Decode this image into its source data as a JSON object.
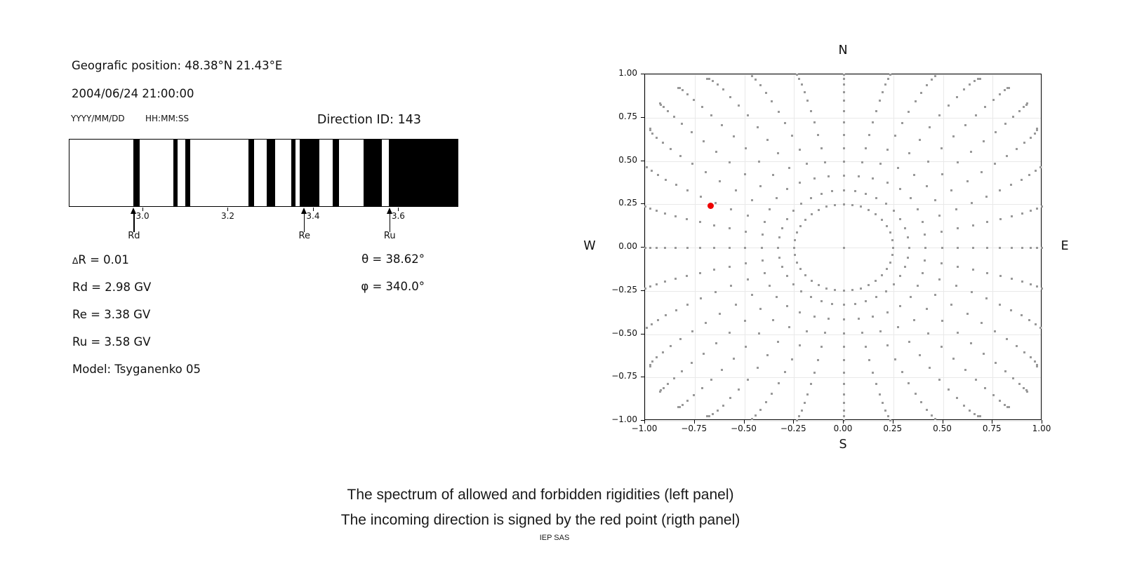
{
  "left_panel": {
    "position_line": "Geografic position: 48.38°N 21.43°E",
    "datetime_line": "2004/06/24 21:00:00",
    "date_format_label": "YYYY/MM/DD",
    "time_format_label": "HH:MM:SS",
    "direction_id": "Direction ID: 143",
    "values": {
      "delta_symbol": "∆",
      "delta_r": "R = 0.01",
      "rd": "Rd = 2.98 GV",
      "re": "Re = 3.38 GV",
      "ru": "Ru = 3.58 GV",
      "model": "Model: Tsyganenko 05",
      "theta": "θ = 38.62°",
      "phi": "φ = 340.0°"
    }
  },
  "chart_data": [
    {
      "type": "bar",
      "subtype": "barcode-rigidity-spectrum",
      "title": "Direction ID: 143",
      "xlim": [
        2.827,
        3.741
      ],
      "xticks": [
        3.0,
        3.2,
        3.4,
        3.6
      ],
      "xtick_labels": [
        "3.0",
        "3.2",
        "3.4",
        "3.6"
      ],
      "allowed_intervals_gv": [
        [
          2.977,
          2.992
        ],
        [
          3.071,
          3.081
        ],
        [
          3.099,
          3.112
        ],
        [
          3.249,
          3.261
        ],
        [
          3.292,
          3.311
        ],
        [
          3.349,
          3.36
        ],
        [
          3.369,
          3.415
        ],
        [
          3.447,
          3.462
        ],
        [
          3.52,
          3.562
        ],
        [
          3.579,
          3.741
        ]
      ],
      "bar_color": "#000000",
      "background_color": "#ffffff",
      "markers": [
        {
          "label": "Rd",
          "value_gv": 2.98
        },
        {
          "label": "Re",
          "value_gv": 3.38
        },
        {
          "label": "Ru",
          "value_gv": 3.58
        }
      ]
    },
    {
      "type": "scatter",
      "subtype": "incoming-direction-map",
      "xlim": [
        -1.0,
        1.0
      ],
      "ylim": [
        -1.0,
        1.0
      ],
      "xticks": [
        -1.0,
        -0.75,
        -0.5,
        -0.25,
        0.0,
        0.25,
        0.5,
        0.75,
        1.0
      ],
      "yticks": [
        1.0,
        0.75,
        0.5,
        0.25,
        0.0,
        -0.25,
        -0.5,
        -0.75,
        -1.0
      ],
      "xtick_labels": [
        "−1.00",
        "−0.75",
        "−0.50",
        "−0.25",
        "0.00",
        "0.25",
        "0.50",
        "0.75",
        "1.00"
      ],
      "ytick_labels": [
        "1.00",
        "0.75",
        "0.50",
        "0.25",
        "0.00",
        "−0.25",
        "−0.50",
        "−0.75",
        "−1.00"
      ],
      "grid": true,
      "compass": {
        "top": "N",
        "bottom": "S",
        "left": "W",
        "right": "E"
      },
      "red_point": {
        "x": -0.67,
        "y": 0.24
      },
      "red_color": "#ee0000",
      "gray_grid_pattern": {
        "dot_color": "#999999",
        "center_dot": true,
        "ring": {
          "radius": 0.25,
          "points": 36
        },
        "spokes": {
          "count": 36,
          "angle_step_deg": 10,
          "r_start": 0.33,
          "r_max_axis": 1.02,
          "r_max_diagonal": 1.25,
          "points_per_spoke": 14,
          "curvature_deg": 6
        }
      }
    }
  ],
  "captions": {
    "line1": "The spectrum of allowed and forbidden rigidities (left panel)",
    "line2": "The incoming direction is signed by the red point (rigth panel)",
    "credit": "IEP SAS"
  }
}
